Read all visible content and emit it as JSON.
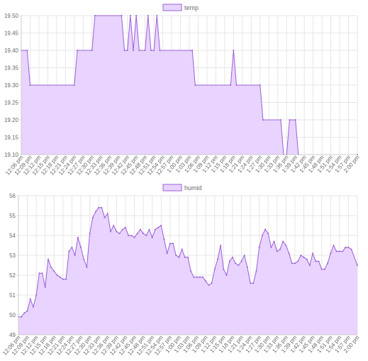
{
  "colors": {
    "fill": "#e8d4ff",
    "stroke": "#9b5fd6",
    "grid": "#e6e6e6",
    "text": "#666666"
  },
  "time_labels": [
    "12:06 pm",
    "12:09 pm",
    "12:12 pm",
    "12:15 pm",
    "12:18 pm",
    "12:21 pm",
    "12:24 pm",
    "12:27 pm",
    "12:30 pm",
    "12:33 pm",
    "12:36 pm",
    "12:39 pm",
    "12:42 pm",
    "12:45 pm",
    "12:48 pm",
    "12:51 pm",
    "12:54 pm",
    "12:57 pm",
    "1:00 pm",
    "1:03 pm",
    "1:06 pm",
    "1:09 pm",
    "1:12 pm",
    "1:15 pm",
    "1:18 pm",
    "1:21 pm",
    "1:24 pm",
    "1:27 pm",
    "1:30 pm",
    "1:33 pm",
    "1:36 pm",
    "1:39 pm",
    "1:42 pm",
    "1:45 pm",
    "1:48 pm",
    "1:51 pm",
    "1:54 pm",
    "1:57 pm",
    "2:00 pm"
  ],
  "chart_data": [
    {
      "type": "area",
      "legend": "temp",
      "legend_position": "top",
      "grid": true,
      "ylim": [
        19.1,
        19.5
      ],
      "yticks": [
        "19.10",
        "19.15",
        "19.20",
        "19.25",
        "19.30",
        "19.35",
        "19.40",
        "19.45",
        "19.50"
      ],
      "x_range": [
        "12:06 pm",
        "2:00 pm"
      ],
      "points": [
        [
          "12:06 pm",
          19.4
        ],
        [
          "12:08 pm",
          19.4
        ],
        [
          "12:09 pm",
          19.3
        ],
        [
          "12:24 pm",
          19.3
        ],
        [
          "12:25 pm",
          19.4
        ],
        [
          "12:30 pm",
          19.4
        ],
        [
          "12:31 pm",
          19.5
        ],
        [
          "12:40 pm",
          19.5
        ],
        [
          "12:41 pm",
          19.4
        ],
        [
          "12:42 pm",
          19.4
        ],
        [
          "12:43 pm",
          19.5
        ],
        [
          "12:44 pm",
          19.4
        ],
        [
          "12:45 pm",
          19.5
        ],
        [
          "12:46 pm",
          19.4
        ],
        [
          "12:48 pm",
          19.4
        ],
        [
          "12:49 pm",
          19.5
        ],
        [
          "12:50 pm",
          19.4
        ],
        [
          "12:51 pm",
          19.4
        ],
        [
          "12:52 pm",
          19.5
        ],
        [
          "12:53 pm",
          19.4
        ],
        [
          "1:04 pm",
          19.4
        ],
        [
          "1:05 pm",
          19.3
        ],
        [
          "1:17 pm",
          19.3
        ],
        [
          "1:18 pm",
          19.4
        ],
        [
          "1:19 pm",
          19.3
        ],
        [
          "1:27 pm",
          19.3
        ],
        [
          "1:28 pm",
          19.2
        ],
        [
          "1:34 pm",
          19.2
        ],
        [
          "1:35 pm",
          19.1
        ],
        [
          "1:36 pm",
          19.1
        ],
        [
          "1:37 pm",
          19.2
        ],
        [
          "1:39 pm",
          19.2
        ],
        [
          "1:40 pm",
          19.1
        ],
        [
          "2:00 pm",
          19.1
        ]
      ]
    },
    {
      "type": "area",
      "legend": "humid",
      "legend_position": "top",
      "grid": true,
      "ylim": [
        49,
        56
      ],
      "yticks": [
        "49",
        "50",
        "51",
        "52",
        "53",
        "54",
        "55",
        "56"
      ],
      "x_range": [
        "12:06 pm",
        "2:00 pm"
      ],
      "points": [
        [
          "12:06 pm",
          49.9
        ],
        [
          "12:07 pm",
          49.9
        ],
        [
          "12:08 pm",
          50.1
        ],
        [
          "12:09 pm",
          50.2
        ],
        [
          "12:10 pm",
          50.8
        ],
        [
          "12:11 pm",
          50.4
        ],
        [
          "12:12 pm",
          51.0
        ],
        [
          "12:13 pm",
          52.1
        ],
        [
          "12:14 pm",
          52.1
        ],
        [
          "12:15 pm",
          51.4
        ],
        [
          "12:16 pm",
          52.8
        ],
        [
          "12:17 pm",
          52.4
        ],
        [
          "12:18 pm",
          52.2
        ],
        [
          "12:19 pm",
          52.0
        ],
        [
          "12:20 pm",
          51.9
        ],
        [
          "12:21 pm",
          51.8
        ],
        [
          "12:22 pm",
          51.8
        ],
        [
          "12:23 pm",
          53.2
        ],
        [
          "12:24 pm",
          53.4
        ],
        [
          "12:25 pm",
          53.0
        ],
        [
          "12:26 pm",
          53.9
        ],
        [
          "12:27 pm",
          53.4
        ],
        [
          "12:28 pm",
          52.8
        ],
        [
          "12:29 pm",
          52.4
        ],
        [
          "12:30 pm",
          54.1
        ],
        [
          "12:31 pm",
          54.9
        ],
        [
          "12:32 pm",
          55.2
        ],
        [
          "12:33 pm",
          55.4
        ],
        [
          "12:34 pm",
          55.4
        ],
        [
          "12:35 pm",
          54.9
        ],
        [
          "12:36 pm",
          55.1
        ],
        [
          "12:37 pm",
          54.2
        ],
        [
          "12:38 pm",
          54.5
        ],
        [
          "12:39 pm",
          54.2
        ],
        [
          "12:40 pm",
          54.1
        ],
        [
          "12:41 pm",
          54.3
        ],
        [
          "12:42 pm",
          54.4
        ],
        [
          "12:43 pm",
          54.0
        ],
        [
          "12:44 pm",
          54.0
        ],
        [
          "12:45 pm",
          53.9
        ],
        [
          "12:46 pm",
          54.1
        ],
        [
          "12:47 pm",
          54.3
        ],
        [
          "12:48 pm",
          54.1
        ],
        [
          "12:49 pm",
          54.0
        ],
        [
          "12:50 pm",
          54.3
        ],
        [
          "12:51 pm",
          53.9
        ],
        [
          "12:52 pm",
          54.3
        ],
        [
          "12:53 pm",
          54.4
        ],
        [
          "12:54 pm",
          54.5
        ],
        [
          "12:55 pm",
          53.8
        ],
        [
          "12:56 pm",
          53.1
        ],
        [
          "12:57 pm",
          53.6
        ],
        [
          "12:58 pm",
          53.6
        ],
        [
          "12:59 pm",
          53.0
        ],
        [
          "1:00 pm",
          52.9
        ],
        [
          "1:01 pm",
          53.3
        ],
        [
          "1:02 pm",
          52.9
        ],
        [
          "1:03 pm",
          52.9
        ],
        [
          "1:04 pm",
          52.2
        ],
        [
          "1:05 pm",
          51.9
        ],
        [
          "1:06 pm",
          51.9
        ],
        [
          "1:07 pm",
          51.9
        ],
        [
          "1:08 pm",
          51.9
        ],
        [
          "1:09 pm",
          51.7
        ],
        [
          "1:10 pm",
          51.5
        ],
        [
          "1:11 pm",
          51.6
        ],
        [
          "1:12 pm",
          52.3
        ],
        [
          "1:13 pm",
          52.8
        ],
        [
          "1:14 pm",
          53.5
        ],
        [
          "1:15 pm",
          52.3
        ],
        [
          "1:16 pm",
          52.0
        ],
        [
          "1:17 pm",
          52.7
        ],
        [
          "1:18 pm",
          52.9
        ],
        [
          "1:19 pm",
          52.6
        ],
        [
          "1:20 pm",
          52.5
        ],
        [
          "1:21 pm",
          52.7
        ],
        [
          "1:22 pm",
          53.0
        ],
        [
          "1:23 pm",
          52.4
        ],
        [
          "1:24 pm",
          51.6
        ],
        [
          "1:25 pm",
          51.6
        ],
        [
          "1:26 pm",
          52.2
        ],
        [
          "1:27 pm",
          53.4
        ],
        [
          "1:28 pm",
          54.0
        ],
        [
          "1:29 pm",
          54.3
        ],
        [
          "1:30 pm",
          54.1
        ],
        [
          "1:31 pm",
          53.4
        ],
        [
          "1:32 pm",
          53.7
        ],
        [
          "1:33 pm",
          53.2
        ],
        [
          "1:34 pm",
          53.3
        ],
        [
          "1:35 pm",
          53.7
        ],
        [
          "1:36 pm",
          53.5
        ],
        [
          "1:37 pm",
          53.1
        ],
        [
          "1:38 pm",
          52.6
        ],
        [
          "1:39 pm",
          52.6
        ],
        [
          "1:40 pm",
          52.7
        ],
        [
          "1:41 pm",
          53.0
        ],
        [
          "1:42 pm",
          52.9
        ],
        [
          "1:43 pm",
          52.8
        ],
        [
          "1:44 pm",
          52.5
        ],
        [
          "1:45 pm",
          53.1
        ],
        [
          "1:46 pm",
          52.7
        ],
        [
          "1:47 pm",
          52.7
        ],
        [
          "1:48 pm",
          52.3
        ],
        [
          "1:49 pm",
          52.3
        ],
        [
          "1:50 pm",
          52.6
        ],
        [
          "1:51 pm",
          53.1
        ],
        [
          "1:52 pm",
          53.5
        ],
        [
          "1:53 pm",
          53.2
        ],
        [
          "1:54 pm",
          53.2
        ],
        [
          "1:55 pm",
          53.2
        ],
        [
          "1:56 pm",
          53.4
        ],
        [
          "1:57 pm",
          53.4
        ],
        [
          "1:58 pm",
          53.3
        ],
        [
          "2:00 pm",
          52.5
        ]
      ]
    }
  ]
}
